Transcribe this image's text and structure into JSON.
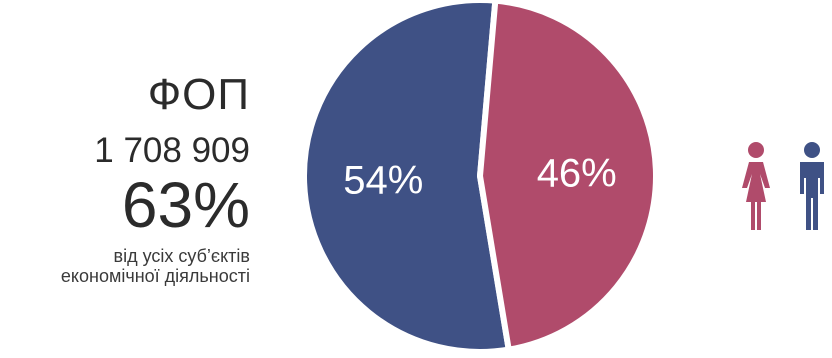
{
  "stats": {
    "title": "ФОП",
    "count": "1 708 909",
    "share": "63%",
    "description_line1": "від усіх суб’єктів",
    "description_line2": "економічної діяльності"
  },
  "chart_data": {
    "type": "pie",
    "slices": [
      {
        "label": "54%",
        "value": 54,
        "color": "#3f5185",
        "depicts": "men"
      },
      {
        "label": "46%",
        "value": 46,
        "color": "#b04b6b",
        "depicts": "women"
      }
    ],
    "label_color": "#ffffff"
  },
  "legend": {
    "female_icon": "female-figure-icon",
    "male_icon": "male-figure-icon",
    "female_color": "#b04b6b",
    "male_color": "#3f5185"
  }
}
